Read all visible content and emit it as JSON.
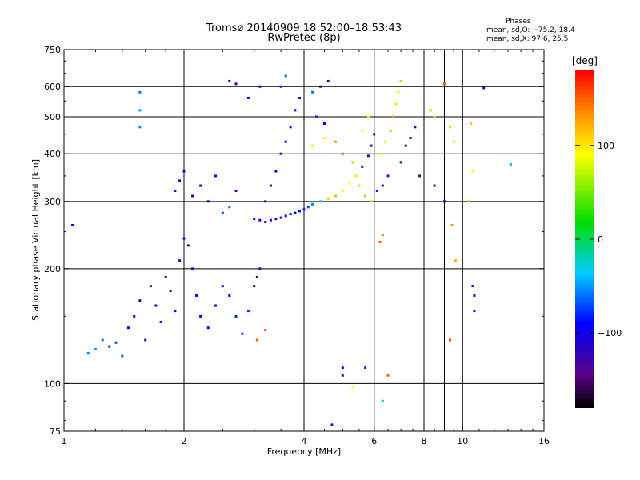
{
  "title_line1": "Tromsø 20140909 18:52:00–18:53:43",
  "title_line2": "RwPretec (8p)",
  "stats": {
    "heading": "Phases",
    "line_o": "mean, sd,O: −75.2, 18.4",
    "line_x": "mean, sd,X:  97.6, 25.5"
  },
  "colorbar": {
    "unit_label": "[deg]",
    "ticks": [
      "100",
      "0",
      "−100"
    ],
    "tick_values": [
      100,
      0,
      -100
    ],
    "range": [
      -180,
      180
    ]
  },
  "chart_data": {
    "type": "scatter",
    "title": "Tromsø 20140909 18:52:00–18:53:43",
    "subtitle": "RwPretec (8p)",
    "xlabel": "Frequency [MHz]",
    "ylabel": "Stationary phase Virtual Height [km]",
    "x_scale": "log",
    "y_scale": "log",
    "xlim": [
      1,
      16
    ],
    "ylim": [
      75,
      750
    ],
    "x_ticks": [
      1,
      2,
      4,
      6,
      8,
      10,
      16
    ],
    "x_tick_labels": [
      "1",
      "2",
      "4",
      "6",
      "8",
      "10",
      "16"
    ],
    "y_ticks": [
      75,
      100,
      200,
      300,
      400,
      500,
      600,
      750
    ],
    "y_tick_labels": [
      "75",
      "100",
      "200",
      "300",
      "400",
      "500",
      "600",
      "750"
    ],
    "grid": true,
    "color_encoding": "phase [deg], rainbow scale −180 to 180",
    "points": [
      [
        1.05,
        260,
        -90
      ],
      [
        1.15,
        120,
        -60
      ],
      [
        1.2,
        123,
        -50
      ],
      [
        1.25,
        130,
        -55
      ],
      [
        1.3,
        125,
        -80
      ],
      [
        1.35,
        128,
        -70
      ],
      [
        1.4,
        118,
        -60
      ],
      [
        1.45,
        140,
        -90
      ],
      [
        1.5,
        150,
        -100
      ],
      [
        1.55,
        165,
        -110
      ],
      [
        1.6,
        130,
        -85
      ],
      [
        1.65,
        180,
        -120
      ],
      [
        1.7,
        160,
        -100
      ],
      [
        1.75,
        145,
        -95
      ],
      [
        1.8,
        190,
        -110
      ],
      [
        1.85,
        175,
        -105
      ],
      [
        1.9,
        155,
        -100
      ],
      [
        1.95,
        210,
        -115
      ],
      [
        2.0,
        240,
        -110
      ],
      [
        2.05,
        230,
        -105
      ],
      [
        2.1,
        200,
        -100
      ],
      [
        2.15,
        170,
        -95
      ],
      [
        2.2,
        150,
        -90
      ],
      [
        2.3,
        140,
        -85
      ],
      [
        2.4,
        160,
        -100
      ],
      [
        2.5,
        180,
        -110
      ],
      [
        2.6,
        170,
        -90
      ],
      [
        2.7,
        150,
        -80
      ],
      [
        2.8,
        135,
        -70
      ],
      [
        2.9,
        155,
        -75
      ],
      [
        3.0,
        180,
        -140
      ],
      [
        3.05,
        190,
        -150
      ],
      [
        3.1,
        200,
        -130
      ],
      [
        3.05,
        130,
        150
      ],
      [
        3.2,
        138,
        160
      ],
      [
        1.55,
        580,
        -60
      ],
      [
        1.55,
        520,
        -50
      ],
      [
        1.55,
        470,
        -55
      ],
      [
        1.9,
        320,
        -120
      ],
      [
        1.95,
        340,
        -115
      ],
      [
        2.0,
        360,
        -110
      ],
      [
        2.1,
        310,
        -100
      ],
      [
        2.2,
        330,
        -105
      ],
      [
        2.3,
        300,
        -100
      ],
      [
        2.4,
        350,
        -110
      ],
      [
        2.5,
        280,
        -70
      ],
      [
        2.6,
        290,
        -60
      ],
      [
        2.7,
        320,
        -120
      ],
      [
        2.6,
        620,
        -90
      ],
      [
        2.7,
        610,
        -100
      ],
      [
        2.9,
        560,
        -110
      ],
      [
        3.1,
        600,
        -100
      ],
      [
        3.0,
        270,
        -100
      ],
      [
        3.1,
        268,
        -95
      ],
      [
        3.2,
        265,
        -100
      ],
      [
        3.3,
        268,
        -110
      ],
      [
        3.4,
        270,
        -120
      ],
      [
        3.5,
        272,
        -110
      ],
      [
        3.6,
        275,
        -100
      ],
      [
        3.7,
        278,
        -95
      ],
      [
        3.8,
        280,
        -90
      ],
      [
        3.9,
        283,
        -85
      ],
      [
        4.0,
        286,
        -80
      ],
      [
        4.1,
        290,
        -70
      ],
      [
        4.2,
        295,
        -60
      ],
      [
        4.4,
        300,
        -40
      ],
      [
        4.6,
        305,
        110
      ],
      [
        4.8,
        310,
        120
      ],
      [
        5.0,
        320,
        100
      ],
      [
        5.2,
        335,
        90
      ],
      [
        5.4,
        350,
        80
      ],
      [
        5.6,
        370,
        -120
      ],
      [
        5.8,
        395,
        -130
      ],
      [
        5.9,
        420,
        -140
      ],
      [
        6.0,
        450,
        -150
      ],
      [
        3.2,
        300,
        -110
      ],
      [
        3.3,
        330,
        -120
      ],
      [
        3.4,
        360,
        -100
      ],
      [
        3.5,
        400,
        -130
      ],
      [
        3.6,
        430,
        -110
      ],
      [
        3.7,
        470,
        -100
      ],
      [
        3.8,
        520,
        -120
      ],
      [
        3.9,
        560,
        -110
      ],
      [
        3.5,
        600,
        -80
      ],
      [
        3.6,
        640,
        -60
      ],
      [
        4.2,
        580,
        -60
      ],
      [
        4.4,
        600,
        -110
      ],
      [
        4.6,
        620,
        -150
      ],
      [
        4.3,
        500,
        -80
      ],
      [
        4.5,
        480,
        -90
      ],
      [
        4.2,
        420,
        100
      ],
      [
        4.5,
        440,
        90
      ],
      [
        4.8,
        430,
        130
      ],
      [
        5.0,
        400,
        150
      ],
      [
        5.3,
        380,
        60
      ],
      [
        5.5,
        330,
        70
      ],
      [
        5.7,
        310,
        55
      ],
      [
        5.9,
        300,
        65
      ],
      [
        5.6,
        460,
        80
      ],
      [
        5.8,
        500,
        100
      ],
      [
        6.2,
        400,
        80
      ],
      [
        6.4,
        430,
        100
      ],
      [
        6.6,
        460,
        120
      ],
      [
        6.7,
        500,
        130
      ],
      [
        6.8,
        540,
        100
      ],
      [
        6.9,
        580,
        90
      ],
      [
        7.0,
        620,
        120
      ],
      [
        6.5,
        350,
        -80
      ],
      [
        6.3,
        330,
        -100
      ],
      [
        6.1,
        320,
        -90
      ],
      [
        7.0,
        380,
        -140
      ],
      [
        7.2,
        420,
        -130
      ],
      [
        7.4,
        440,
        -120
      ],
      [
        7.6,
        470,
        -110
      ],
      [
        8.3,
        520,
        120
      ],
      [
        8.5,
        500,
        100
      ],
      [
        9.0,
        610,
        150
      ],
      [
        9.3,
        470,
        110
      ],
      [
        9.5,
        430,
        100
      ],
      [
        9.4,
        260,
        130
      ],
      [
        9.6,
        210,
        120
      ],
      [
        9.3,
        130,
        160
      ],
      [
        10.5,
        480,
        110
      ],
      [
        10.6,
        360,
        90
      ],
      [
        10.6,
        180,
        -130
      ],
      [
        10.7,
        170,
        -120
      ],
      [
        10.7,
        155,
        -100
      ],
      [
        11.3,
        595,
        -120
      ],
      [
        13.2,
        375,
        -40
      ],
      [
        5.0,
        110,
        -100
      ],
      [
        5.0,
        105,
        -110
      ],
      [
        5.3,
        98,
        90
      ],
      [
        6.5,
        105,
        150
      ],
      [
        6.3,
        90,
        -20
      ],
      [
        4.7,
        78,
        -120
      ],
      [
        5.7,
        110,
        -80
      ],
      [
        6.2,
        235,
        150
      ],
      [
        6.3,
        245,
        140
      ],
      [
        7.8,
        350,
        -140
      ],
      [
        8.5,
        330,
        -120
      ],
      [
        9.0,
        300,
        -90
      ],
      [
        10.4,
        300,
        60
      ]
    ]
  }
}
